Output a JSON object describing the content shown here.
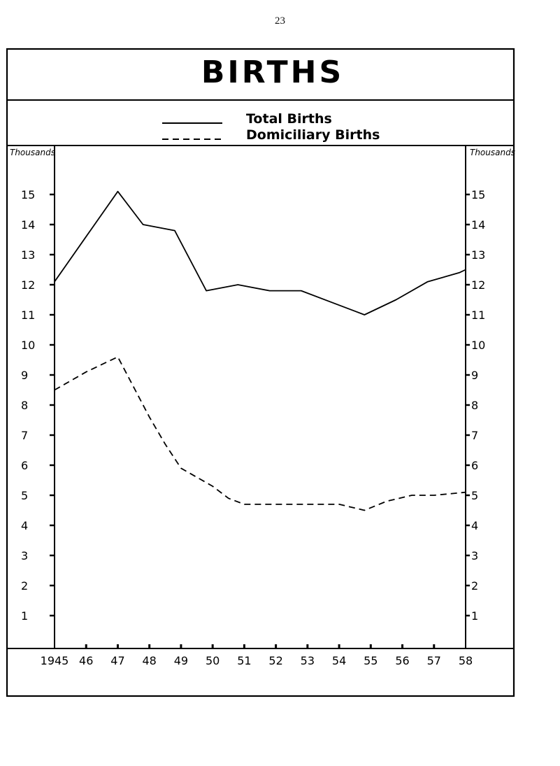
{
  "page_number": "23",
  "chart_data": {
    "type": "line",
    "title": "BIRTHS",
    "xlabel": "",
    "ylabel_left": "Thousands",
    "ylabel_right": "Thousands",
    "ylim": [
      0,
      16
    ],
    "yticks": [
      1,
      2,
      3,
      4,
      5,
      6,
      7,
      8,
      9,
      10,
      11,
      12,
      13,
      14,
      15
    ],
    "ytick_labels": [
      "1",
      "2",
      "3",
      "4",
      "5",
      "6",
      "7",
      "8",
      "9",
      "10",
      "11",
      "12",
      "13",
      "14",
      "15"
    ],
    "xlim": [
      1945,
      1958
    ],
    "x_tick_labels": [
      "1945",
      "46",
      "47",
      "48",
      "49",
      "50",
      "51",
      "52",
      "53",
      "54",
      "55",
      "56",
      "57",
      "58"
    ],
    "series": [
      {
        "name": "Total Births",
        "style": "solid",
        "x": [
          1945,
          1946,
          1947,
          1947.8,
          1948.8,
          1949.8,
          1950.8,
          1951.8,
          1952.8,
          1953.8,
          1954.8,
          1955.8,
          1956.8,
          1957.8,
          1958
        ],
        "y": [
          12.1,
          13.6,
          15.1,
          14.0,
          13.8,
          11.8,
          12.0,
          11.8,
          11.8,
          11.4,
          11.0,
          11.5,
          12.1,
          12.4,
          12.5
        ]
      },
      {
        "name": "Domiciliary Births",
        "style": "dashed",
        "x": [
          1945,
          1946,
          1947,
          1947.5,
          1948,
          1948.5,
          1949,
          1949.5,
          1950,
          1950.5,
          1951,
          1952,
          1953,
          1954,
          1954.8,
          1955.5,
          1956.3,
          1957,
          1958
        ],
        "y": [
          8.5,
          9.1,
          9.6,
          8.6,
          7.6,
          6.7,
          5.9,
          5.6,
          5.3,
          4.9,
          4.7,
          4.7,
          4.7,
          4.7,
          4.5,
          4.8,
          5.0,
          5.0,
          5.1
        ]
      }
    ]
  }
}
